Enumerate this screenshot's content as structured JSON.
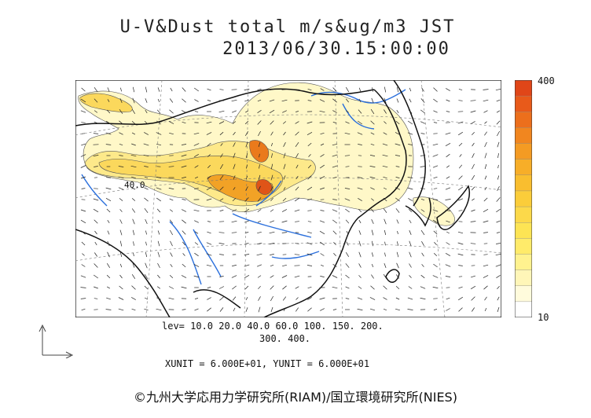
{
  "title": {
    "line1": "U-V&Dust total m/s&ug/m3 JST",
    "line2": "2013/06/30.15:00:00"
  },
  "map": {
    "contour_label": "40.0",
    "dust_fill_colors": [
      "#fff8c8",
      "#fff2a8",
      "#fde98a",
      "#fbd85c",
      "#f7c238",
      "#f2a226",
      "#ea7a1c",
      "#df5418"
    ],
    "coastline_color": "#111111",
    "river_color": "#2a6fdc",
    "grid_color": "#666666",
    "wind_vector_color": "#222222"
  },
  "colorbar": {
    "max_label": "400",
    "min_label": "10",
    "colors": [
      "#ffffff",
      "#fffbdc",
      "#fff6b8",
      "#fff28f",
      "#ffeb6a",
      "#fde454",
      "#fcd94a",
      "#fbcd3a",
      "#f9be2f",
      "#f7ae28",
      "#f49b23",
      "#f1861f",
      "#ec6f1c",
      "#e85a1a",
      "#e04618"
    ]
  },
  "levels": {
    "line1": "lev= 10.0 20.0 40.0 60.0 100. 150. 200.",
    "line2": "300. 400."
  },
  "units": "XUNIT = 6.000E+01, YUNIT = 6.000E+01",
  "credit": "©九州大学応用力学研究所(RIAM)/国立環境研究所(NIES)"
}
